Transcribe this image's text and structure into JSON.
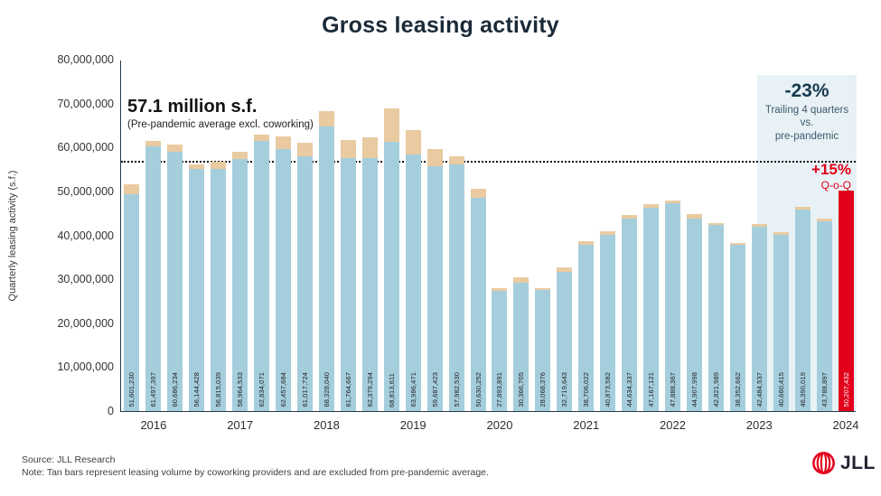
{
  "header": {
    "title": "Gross leasing activity"
  },
  "y_axis": {
    "title": "Quarterly leasing activity (s.f.)",
    "ticks": [
      "80,000,000",
      "70,000,000",
      "60,000,000",
      "50,000,000",
      "40,000,000",
      "30,000,000",
      "20,000,000",
      "10,000,000",
      "0"
    ]
  },
  "x_axis": {
    "years": [
      "2016",
      "2017",
      "2018",
      "2019",
      "2020",
      "2021",
      "2022",
      "2023",
      "2024"
    ]
  },
  "annotations": {
    "avg_value": "57.1 million s.f.",
    "avg_caption": "(Pre-pandemic average excl. coworking)",
    "trailing_pct": "-23%",
    "trailing_lines": [
      "Trailing 4 quarters",
      "vs.",
      "pre-pandemic"
    ],
    "qoq_pct": "+15%",
    "qoq_caption": "Q-o-Q"
  },
  "footer": {
    "source": "Source: JLL Research",
    "note": "Note: Tan bars represent leasing volume by coworking providers  and are excluded from pre-pandemic  average.",
    "logo_text": "JLL"
  },
  "colors": {
    "bar_blue": "#a5cedd",
    "bar_tan": "#e9caa1",
    "bar_red": "#e2001a",
    "highlight_box": "#e8f1f5",
    "title_navy": "#1b2a38",
    "trailing_navy": "#16394e"
  },
  "chart_data": {
    "type": "bar",
    "stacked": true,
    "title": "Gross leasing activity",
    "ylabel": "Quarterly leasing activity (s.f.)",
    "ylim": [
      0,
      80000000
    ],
    "grid": false,
    "pre_pandemic_avg_sf": 57100000,
    "quarters": [
      "Q1 2016",
      "Q2 2016",
      "Q3 2016",
      "Q4 2016",
      "Q1 2017",
      "Q2 2017",
      "Q3 2017",
      "Q4 2017",
      "Q1 2018",
      "Q2 2018",
      "Q3 2018",
      "Q4 2018",
      "Q1 2019",
      "Q2 2019",
      "Q3 2019",
      "Q4 2019",
      "Q1 2020",
      "Q2 2020",
      "Q3 2020",
      "Q4 2020",
      "Q1 2021",
      "Q2 2021",
      "Q3 2021",
      "Q4 2021",
      "Q1 2022",
      "Q2 2022",
      "Q3 2022",
      "Q4 2022",
      "Q1 2023",
      "Q2 2023",
      "Q3 2023",
      "Q4 2023",
      "Q1 2024",
      "Q2 2024"
    ],
    "totals": [
      51601230,
      61497397,
      60686234,
      56144428,
      56815039,
      58964533,
      62834071,
      62457684,
      61017724,
      68328040,
      61764667,
      62379294,
      68813611,
      63986471,
      59687423,
      57982530,
      50630252,
      27893891,
      30366705,
      28068376,
      32719643,
      38706022,
      40873582,
      44634337,
      47167121,
      47888367,
      44907998,
      42821989,
      38352662,
      42484537,
      40660415,
      46390019,
      43788897,
      50207432
    ],
    "labels": [
      "51,601,230",
      "61,497,397",
      "60,686,234",
      "56,144,428",
      "56,815,039",
      "58,964,533",
      "62,834,071",
      "62,457,684",
      "61,017,724",
      "68,328,040",
      "61,764,667",
      "62,379,294",
      "68,813,611",
      "63,986,471",
      "59,687,423",
      "57,982,530",
      "50,630,252",
      "27,893,891",
      "30,366,705",
      "28,068,376",
      "32,719,643",
      "38,706,022",
      "40,873,582",
      "44,634,337",
      "47,167,121",
      "47,888,367",
      "44,907,998",
      "42,821,989",
      "38,352,662",
      "42,484,537",
      "40,660,415",
      "46,390,019",
      "43,788,897",
      "50,207,432"
    ],
    "coworking_est_sf": [
      2200000,
      1300000,
      1700000,
      1000000,
      1700000,
      1500000,
      1400000,
      2900000,
      3100000,
      3500000,
      4200000,
      4800000,
      7500000,
      5600000,
      3900000,
      1800000,
      2000000,
      600000,
      1100000,
      600000,
      1100000,
      900000,
      700000,
      800000,
      800000,
      600000,
      1000000,
      500000,
      500000,
      600000,
      600000,
      500000,
      500000,
      0
    ],
    "red_bar_index": 33,
    "highlight_last_n": 4,
    "legend_note": "Tan segment = coworking providers volume"
  }
}
